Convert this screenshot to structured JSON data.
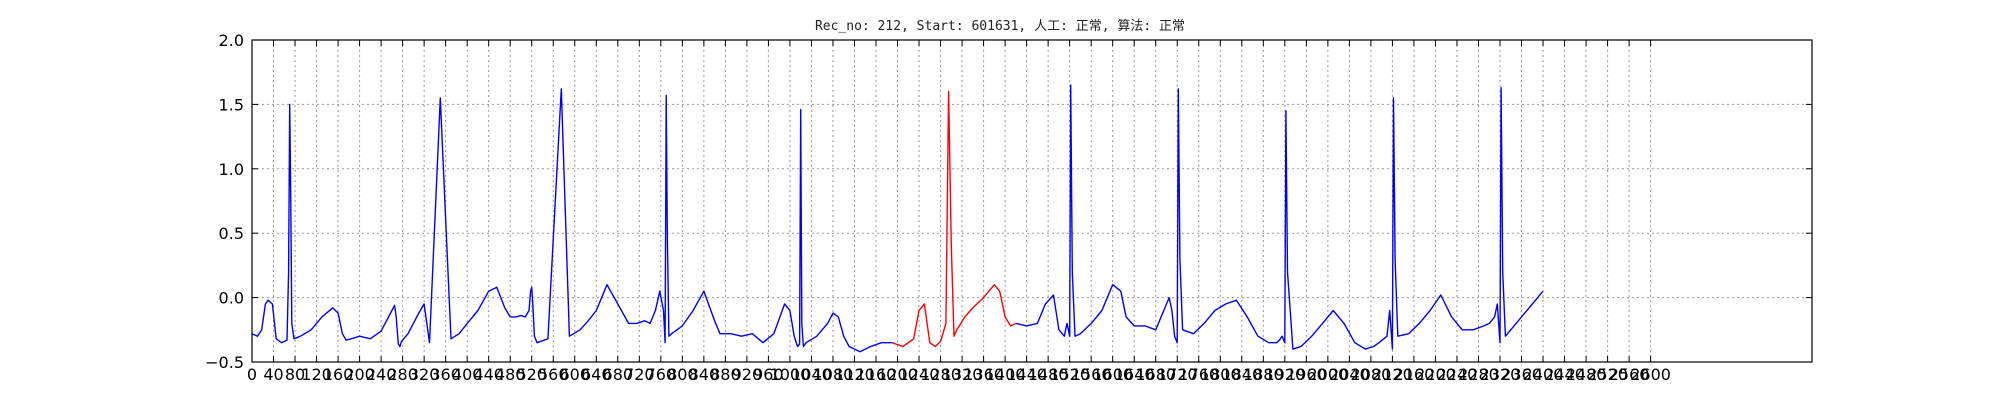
{
  "chart_data": {
    "type": "line",
    "title": "Rec_no: 212, Start: 601631, 人工: 正常, 算法: 正常",
    "xlabel": "",
    "ylabel": "",
    "xlim": [
      0,
      2900
    ],
    "ylim": [
      -0.5,
      2.0
    ],
    "grid": true,
    "yticks": [
      -0.5,
      0.0,
      0.5,
      1.0,
      1.5,
      2.0
    ],
    "ytick_labels": [
      "−0.5",
      "0.0",
      "0.5",
      "1.0",
      "1.5",
      "2.0"
    ],
    "xticks": [
      0,
      40,
      80,
      120,
      160,
      200,
      240,
      280,
      320,
      360,
      400,
      440,
      480,
      520,
      560,
      600,
      640,
      680,
      720,
      760,
      800,
      840,
      880,
      920,
      960,
      1000,
      1040,
      1080,
      1120,
      1160,
      1200,
      1240,
      1280,
      1320,
      1360,
      1400,
      1440,
      1480,
      1520,
      1560,
      1600,
      1640,
      1680,
      1720,
      1760,
      1800,
      1840,
      1880,
      1920,
      1960,
      2000,
      2040,
      2080,
      2120,
      2160,
      2200,
      2240,
      2280,
      2320,
      2360,
      2400,
      2440,
      2480,
      2520,
      2560,
      2600
    ],
    "xtick_labels": [
      "0",
      "40",
      "80",
      "120",
      "160",
      "200",
      "240",
      "280",
      "320",
      "360",
      "400",
      "440",
      "480",
      "520",
      "560",
      "600",
      "640",
      "680",
      "720",
      "760",
      "800",
      "840",
      "880",
      "920",
      "960",
      "1000",
      "1040",
      "1080",
      "1120",
      "1160",
      "1200",
      "1240",
      "1280",
      "1320",
      "1360",
      "1400",
      "1440",
      "1480",
      "1520",
      "1560",
      "1600",
      "1640",
      "1680",
      "1720",
      "1760",
      "1800",
      "1840",
      "1880",
      "1920",
      "1960",
      "2000",
      "2040",
      "2080",
      "2120",
      "2160",
      "2200",
      "2240",
      "2280",
      "2320",
      "2360",
      "2400",
      "2440",
      "2480",
      "2520",
      "2560",
      "2600"
    ],
    "series": [
      {
        "color": "#0000ff",
        "x": [
          0,
          10,
          18,
          25,
          30,
          38,
          45,
          55,
          65,
          68,
          70,
          72,
          74,
          78,
          90,
          110,
          130,
          150,
          160,
          168,
          175,
          185,
          200,
          220,
          240,
          260,
          265,
          268,
          272,
          275,
          278,
          290,
          310,
          320,
          330,
          350,
          360,
          370,
          385,
          400,
          420,
          440,
          455,
          470,
          480,
          490,
          500,
          508,
          515,
          518,
          520,
          522,
          525,
          530,
          550,
          575,
          590,
          610,
          625,
          640,
          660,
          680,
          700,
          715,
          730,
          740,
          750,
          758,
          765,
          768,
          770,
          772,
          775,
          780,
          800,
          820,
          840,
          860,
          870,
          890,
          910,
          930,
          950,
          970,
          990,
          1000,
          1008,
          1014,
          1018,
          1020,
          1022,
          1025,
          1030,
          1050,
          1070,
          1080,
          1090,
          1100,
          1110,
          1130,
          1150,
          1170,
          1190
        ],
        "y": [
          -0.28,
          -0.3,
          -0.25,
          -0.05,
          -0.02,
          -0.05,
          -0.32,
          -0.35,
          -0.33,
          0.2,
          1.5,
          0.8,
          -0.2,
          -0.32,
          -0.3,
          -0.25,
          -0.15,
          -0.08,
          -0.12,
          -0.28,
          -0.33,
          -0.32,
          -0.3,
          -0.32,
          -0.26,
          -0.1,
          -0.06,
          -0.15,
          -0.36,
          -0.38,
          -0.34,
          -0.28,
          -0.12,
          -0.05,
          -0.35,
          1.55,
          0.6,
          -0.32,
          -0.28,
          -0.2,
          -0.1,
          0.05,
          0.08,
          -0.08,
          -0.15,
          -0.15,
          -0.14,
          -0.15,
          -0.1,
          0.05,
          0.08,
          -0.05,
          -0.3,
          -0.35,
          -0.32,
          1.62,
          -0.3,
          -0.25,
          -0.18,
          -0.1,
          0.1,
          -0.05,
          -0.2,
          -0.2,
          -0.18,
          -0.2,
          -0.1,
          0.05,
          -0.1,
          -0.35,
          1.57,
          0.5,
          -0.3,
          -0.28,
          -0.22,
          -0.1,
          0.05,
          -0.18,
          -0.28,
          -0.28,
          -0.3,
          -0.28,
          -0.35,
          -0.28,
          -0.05,
          -0.1,
          -0.3,
          -0.38,
          -0.36,
          1.46,
          -0.2,
          -0.38,
          -0.35,
          -0.3,
          -0.2,
          -0.12,
          -0.15,
          -0.3,
          -0.38,
          -0.42,
          -0.38,
          -0.35,
          -0.35
        ]
      },
      {
        "color": "#ff0000",
        "x": [
          1190,
          1210,
          1230,
          1240,
          1250,
          1255,
          1260,
          1270,
          1280,
          1290,
          1295,
          1300,
          1305,
          1310,
          1315,
          1325,
          1340,
          1360,
          1380,
          1390,
          1400,
          1410,
          1420
        ],
        "y": [
          -0.35,
          -0.38,
          -0.32,
          -0.1,
          -0.05,
          -0.2,
          -0.35,
          -0.38,
          -0.34,
          -0.2,
          1.6,
          0.4,
          -0.3,
          -0.25,
          -0.22,
          -0.15,
          -0.08,
          0.0,
          0.1,
          0.05,
          -0.15,
          -0.22,
          -0.2
        ]
      },
      {
        "color": "#0000ff",
        "x": [
          1420,
          1440,
          1460,
          1475,
          1490,
          1500,
          1510,
          1515,
          1520,
          1522,
          1525,
          1530,
          1540,
          1560,
          1580,
          1600,
          1615,
          1625,
          1640,
          1660,
          1680,
          1700,
          1705,
          1710,
          1715,
          1720,
          1722,
          1725,
          1730,
          1750,
          1770,
          1790,
          1810,
          1830,
          1850,
          1870,
          1890,
          1905,
          1910,
          1915,
          1920,
          1922,
          1925,
          1935,
          1950,
          1970,
          1990,
          2010,
          2030,
          2050,
          2070,
          2085,
          2095,
          2110,
          2115,
          2120,
          2122,
          2125,
          2130,
          2150,
          2170,
          2190,
          2210,
          2230,
          2250,
          2270,
          2290,
          2300,
          2310,
          2315,
          2320,
          2322,
          2325,
          2330,
          2340,
          2360,
          2380,
          2400
        ],
        "y": [
          -0.2,
          -0.22,
          -0.2,
          -0.05,
          0.02,
          -0.25,
          -0.3,
          -0.2,
          -0.3,
          1.65,
          0.2,
          -0.3,
          -0.28,
          -0.2,
          -0.1,
          0.1,
          0.05,
          -0.15,
          -0.22,
          -0.22,
          -0.25,
          -0.05,
          0.0,
          -0.1,
          -0.3,
          -0.35,
          1.62,
          0.3,
          -0.25,
          -0.28,
          -0.2,
          -0.1,
          -0.05,
          -0.02,
          -0.15,
          -0.3,
          -0.35,
          -0.35,
          -0.33,
          -0.3,
          -0.35,
          1.45,
          0.2,
          -0.4,
          -0.38,
          -0.3,
          -0.2,
          -0.1,
          -0.2,
          -0.35,
          -0.4,
          -0.38,
          -0.35,
          -0.3,
          -0.1,
          -0.4,
          1.55,
          0.3,
          -0.3,
          -0.28,
          -0.2,
          -0.1,
          0.02,
          -0.15,
          -0.25,
          -0.25,
          -0.22,
          -0.2,
          -0.15,
          -0.05,
          -0.35,
          1.63,
          0.2,
          -0.3,
          -0.25,
          -0.15,
          -0.05,
          0.05
        ]
      }
    ]
  }
}
